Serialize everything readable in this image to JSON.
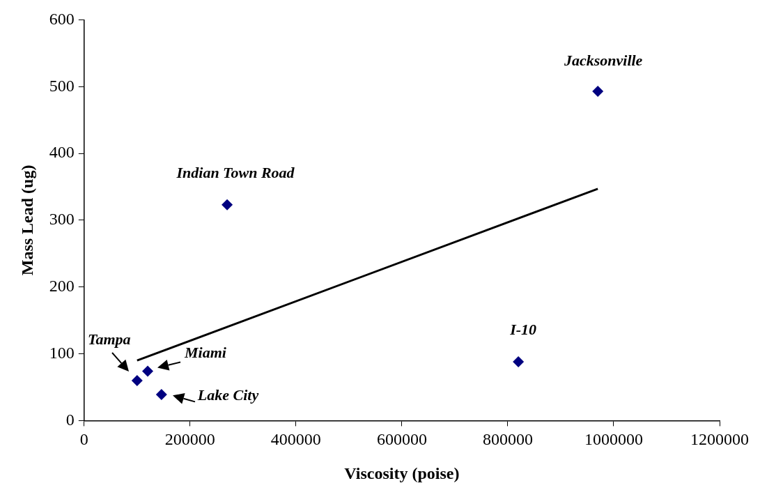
{
  "chart_data": {
    "type": "scatter",
    "xlabel": "Viscosity (poise)",
    "ylabel": "Mass Lead (ug)",
    "x": [
      100000,
      120000,
      146000,
      270000,
      820000,
      970000
    ],
    "series": [
      {
        "color": "#000080",
        "marker": "diamond",
        "values": [
          60,
          74,
          39,
          323,
          88,
          493
        ]
      },
      {
        "type": "line",
        "color": "#000000",
        "marker": "none",
        "x": [
          100000,
          970000
        ],
        "values": [
          90,
          347
        ]
      }
    ],
    "annotations": [
      {
        "text": "Tampa",
        "x": 100000,
        "y": 60
      },
      {
        "text": "Miami",
        "x": 120000,
        "y": 74
      },
      {
        "text": "Lake City",
        "x": 146000,
        "y": 39
      },
      {
        "text": "Indian Town Road",
        "x": 270000,
        "y": 323
      },
      {
        "text": "I-10",
        "x": 820000,
        "y": 88
      },
      {
        "text": "Jacksonville",
        "x": 970000,
        "y": 493
      }
    ],
    "xlim": [
      0,
      1200000
    ],
    "xticks": [
      0,
      200000,
      400000,
      600000,
      800000,
      1000000,
      1200000
    ],
    "ylim": [
      0,
      600
    ],
    "yticks": [
      0,
      100,
      200,
      300,
      400,
      500,
      600
    ]
  }
}
